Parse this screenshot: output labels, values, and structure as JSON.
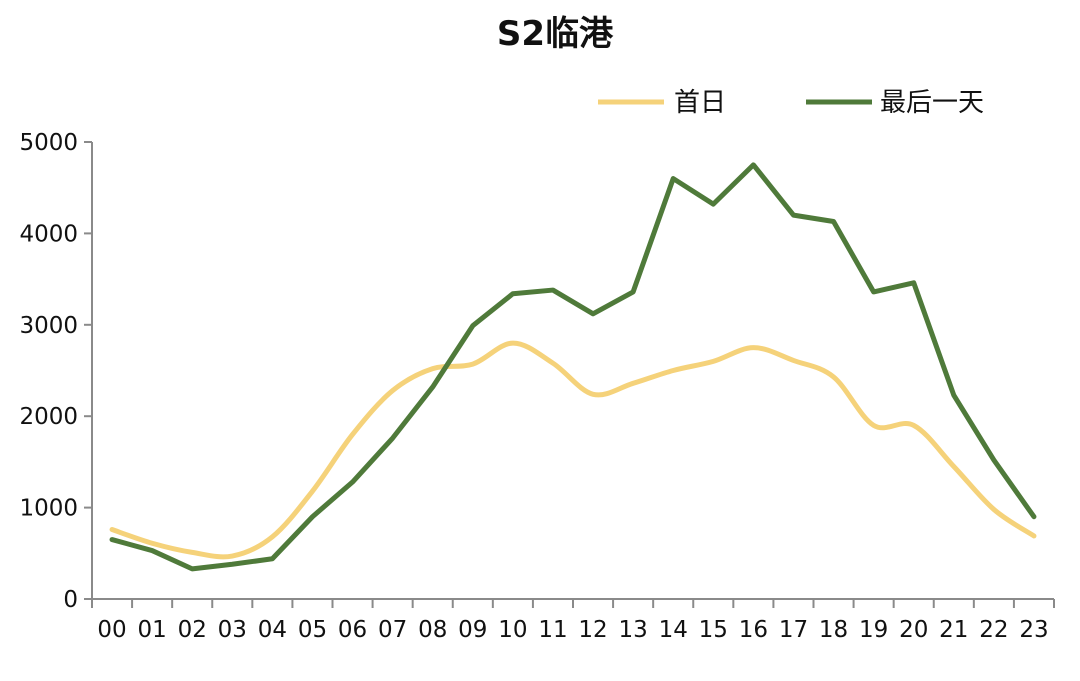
{
  "chart_data": {
    "type": "line",
    "title": "S2临港",
    "xlabel": "",
    "ylabel": "",
    "categories": [
      "00",
      "01",
      "02",
      "03",
      "04",
      "05",
      "06",
      "07",
      "08",
      "09",
      "10",
      "11",
      "12",
      "13",
      "14",
      "15",
      "16",
      "17",
      "18",
      "19",
      "20",
      "21",
      "22",
      "23"
    ],
    "ylim": [
      0,
      5000
    ],
    "yticks": [
      0,
      1000,
      2000,
      3000,
      4000,
      5000
    ],
    "grid": false,
    "legend_position": "top-right",
    "series": [
      {
        "name": "首日",
        "color": "#f5d27a",
        "smooth": true,
        "values": [
          760,
          610,
          510,
          470,
          680,
          1180,
          1800,
          2280,
          2520,
          2570,
          2800,
          2580,
          2240,
          2360,
          2500,
          2600,
          2750,
          2610,
          2430,
          1900,
          1900,
          1450,
          980,
          690
        ]
      },
      {
        "name": "最后一天",
        "color": "#4f7a3a",
        "smooth": false,
        "values": [
          650,
          530,
          330,
          380,
          440,
          900,
          1280,
          1760,
          2320,
          2990,
          3340,
          3380,
          3120,
          3360,
          4600,
          4320,
          4750,
          4200,
          4130,
          3360,
          3460,
          2230,
          1520,
          900
        ]
      }
    ]
  }
}
